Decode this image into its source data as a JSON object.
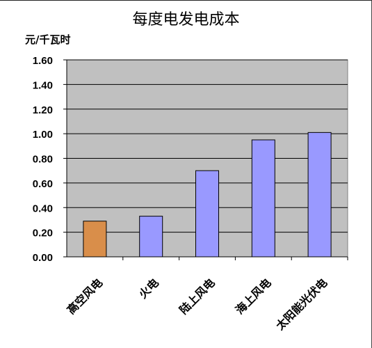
{
  "chart_data": {
    "type": "bar",
    "title": "每度电发电成本",
    "ylabel": "元/千瓦时",
    "xlabel": "",
    "categories": [
      "高空风电",
      "火电",
      "陆上风电",
      "海上风电",
      "太阳能光伏电"
    ],
    "values": [
      0.29,
      0.33,
      0.7,
      0.95,
      1.01
    ],
    "ylim": [
      0,
      1.6
    ],
    "yticks": [
      "0.00",
      "0.20",
      "0.40",
      "0.60",
      "0.80",
      "1.00",
      "1.20",
      "1.40",
      "1.60"
    ],
    "grid": true,
    "colors": {
      "plot_background": "#c0c0c0",
      "highlight_bar": "#d98e4a",
      "bar": "#9999ff",
      "gridline": "#000000"
    },
    "highlight_index": 0
  }
}
